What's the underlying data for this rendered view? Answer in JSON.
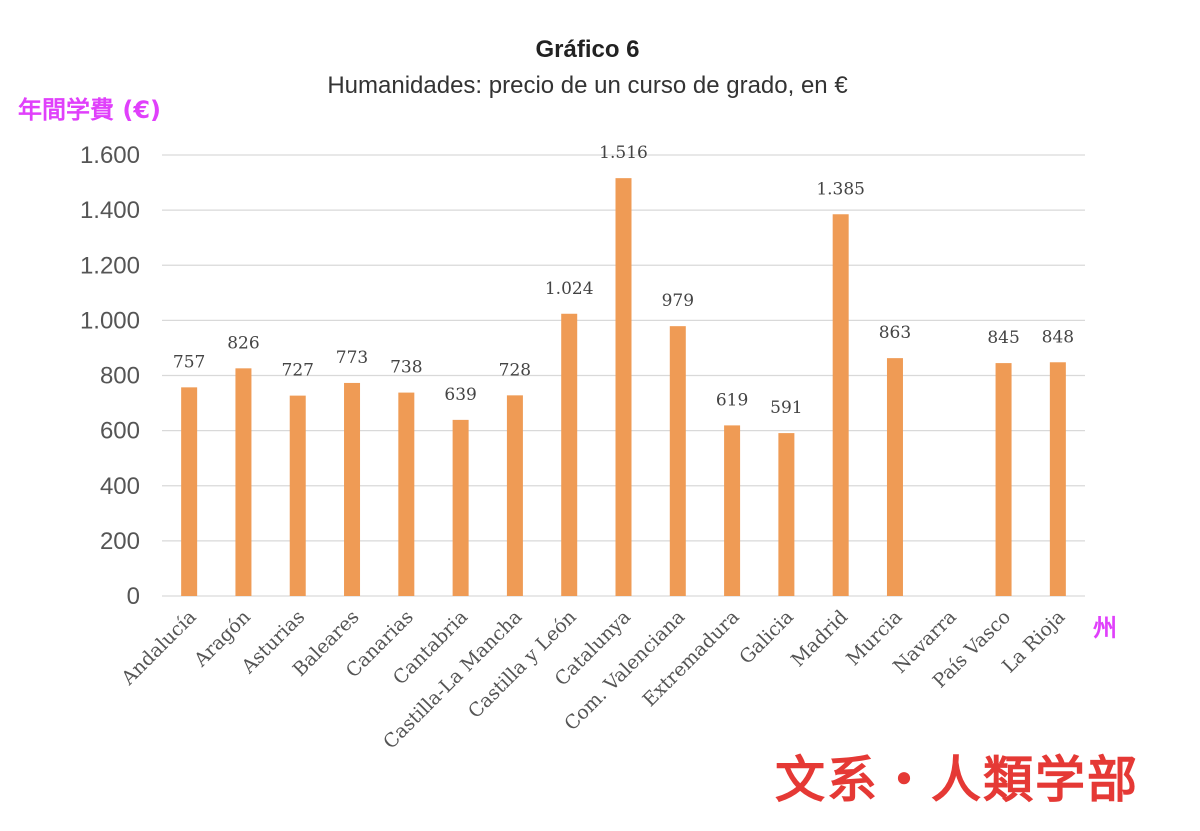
{
  "page": {
    "y_annotation": "年間学費 (€)",
    "x_annotation": "州",
    "faculty_label": "文系・人類学部"
  },
  "colors": {
    "bar": "#ef9b55",
    "grid": "#d9d9d9",
    "annotation": "#e040fb",
    "faculty": "#e53935"
  },
  "chart_data": {
    "type": "bar",
    "title": "Gráfico 6",
    "subtitle": "Humanidades: precio de un curso de grado, en €",
    "xlabel": "",
    "ylabel": "",
    "ylim": [
      0,
      1600
    ],
    "yticks": [
      0,
      200,
      400,
      600,
      800,
      1000,
      1200,
      1400,
      1600
    ],
    "ytick_labels": [
      "0",
      "200",
      "400",
      "600",
      "800",
      "1.000",
      "1.200",
      "1.400",
      "1.600"
    ],
    "grid": true,
    "categories": [
      "Andalucía",
      "Aragón",
      "Asturias",
      "Baleares",
      "Canarias",
      "Cantabria",
      "Castilla-La Mancha",
      "Castilla y León",
      "Catalunya",
      "Com. Valenciana",
      "Extremadura",
      "Galicia",
      "Madrid",
      "Murcia",
      "Navarra",
      "País Vasco",
      "La Rioja"
    ],
    "values": [
      757,
      826,
      727,
      773,
      738,
      639,
      728,
      1024,
      1516,
      979,
      619,
      591,
      1385,
      863,
      null,
      845,
      848
    ],
    "value_labels": [
      "757",
      "826",
      "727",
      "773",
      "738",
      "639",
      "728",
      "1.024",
      "1.516",
      "979",
      "619",
      "591",
      "1.385",
      "863",
      "",
      "845",
      "848"
    ]
  }
}
